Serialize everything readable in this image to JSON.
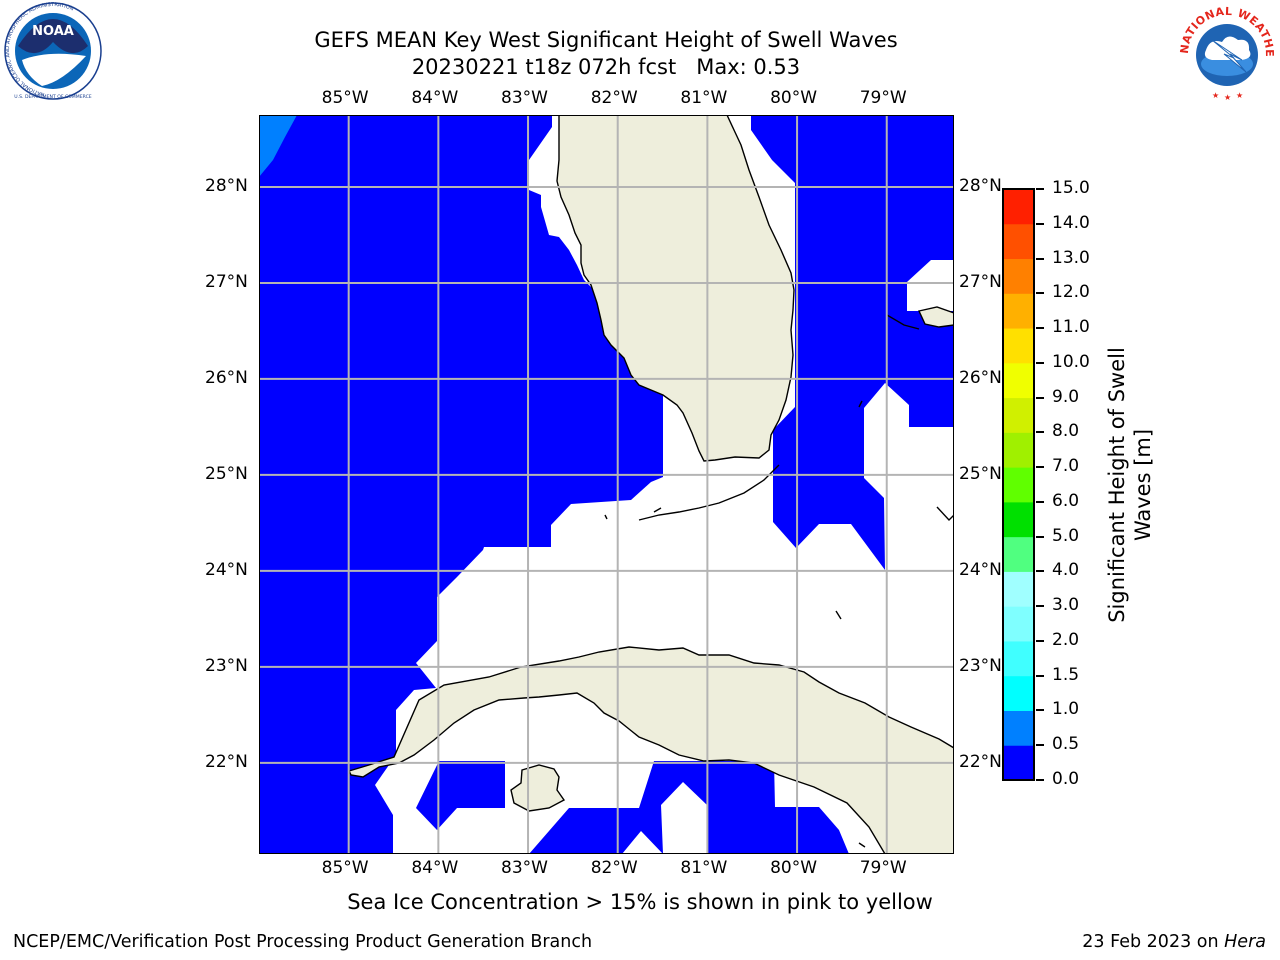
{
  "header": {
    "title_line1": "GEFS MEAN Key West Significant Height of Swell Waves",
    "title_line2": "20230221 t18z 072h fcst   Max: 0.53"
  },
  "logos": {
    "left_name": "NOAA",
    "left_ring_text": "NATIONAL OCEANIC AND ATMOSPHERIC ADMINISTRATION",
    "left_ring_text_bottom": "U.S. DEPARTMENT OF COMMERCE",
    "right_ring_text": "NATIONAL WEATHER SERVICE"
  },
  "map": {
    "lon_labels": [
      "85°W",
      "84°W",
      "83°W",
      "82°W",
      "81°W",
      "80°W",
      "79°W"
    ],
    "lat_labels": [
      "28°N",
      "27°N",
      "26°N",
      "25°N",
      "24°N",
      "23°N",
      "22°N"
    ],
    "lon_range": [
      -86.0,
      -78.25
    ],
    "lat_range": [
      21.05,
      28.75
    ],
    "water_color": "#0000ff",
    "light_water_color": "#0080ff",
    "land_color": "#eeeedc",
    "grid_color": "#b4b4b4"
  },
  "colorbar": {
    "title": "Significant Height of Swell\nWaves [m]",
    "ticks": [
      "0.0",
      "0.5",
      "1.0",
      "1.5",
      "2.0",
      "3.0",
      "4.0",
      "5.0",
      "6.0",
      "7.0",
      "8.0",
      "9.0",
      "10.0",
      "11.0",
      "12.0",
      "13.0",
      "14.0",
      "15.0"
    ],
    "colors": [
      "#0000ff",
      "#0080ff",
      "#00ffff",
      "#40ffff",
      "#7fffff",
      "#a0ffff",
      "#50ff80",
      "#00e000",
      "#60ff00",
      "#a0f000",
      "#d0f000",
      "#f0ff00",
      "#ffe000",
      "#ffb000",
      "#ff8000",
      "#ff5000",
      "#ff2000",
      "#ff0000"
    ]
  },
  "footer": {
    "note": "Sea Ice Concentration > 15% is shown in pink to yellow",
    "credit_left": "NCEP/EMC/Verification Post Processing Product Generation Branch",
    "credit_right_prefix": "23 Feb 2023 on ",
    "credit_right_host": "Hera"
  }
}
